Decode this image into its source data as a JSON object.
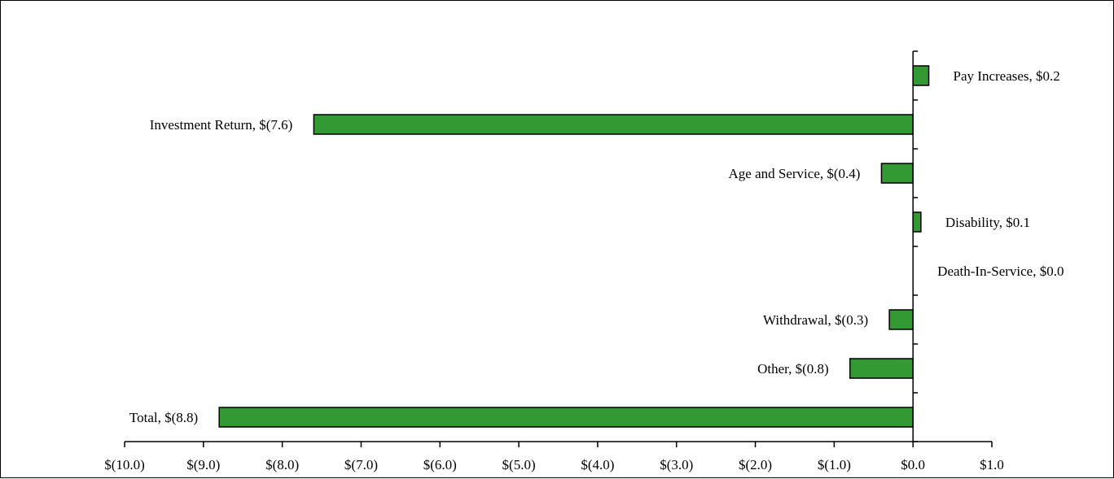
{
  "chart_data": {
    "type": "bar",
    "orientation": "horizontal",
    "categories": [
      "Pay Increases",
      "Investment Return",
      "Age and Service",
      "Disability",
      "Death-In-Service",
      "Withdrawal",
      "Other",
      "Total"
    ],
    "values": [
      0.2,
      -7.6,
      -0.4,
      0.1,
      0.0,
      -0.3,
      -0.8,
      -8.8
    ],
    "data_labels": [
      "Pay Increases, $0.2",
      "Investment Return, $(7.6)",
      "Age and Service, $(0.4)",
      "Disability, $0.1",
      "Death-In-Service, $0.0",
      "Withdrawal, $(0.3)",
      "Other, $(0.8)",
      "Total, $(8.8)"
    ],
    "xlim": [
      -10.0,
      1.0
    ],
    "x_ticks": [
      -10,
      -9,
      -8,
      -7,
      -6,
      -5,
      -4,
      -3,
      -2,
      -1,
      0,
      1
    ],
    "x_tick_labels": [
      "$(10.0)",
      "$(9.0)",
      "$(8.0)",
      "$(7.0)",
      "$(6.0)",
      "$(5.0)",
      "$(4.0)",
      "$(3.0)",
      "$(2.0)",
      "$(1.0)",
      "$0.0",
      "$1.0"
    ],
    "title": "",
    "xlabel": "",
    "ylabel": "",
    "grid": false,
    "legend": "none",
    "bar_color": "#339933",
    "bar_edge_color": "#000000"
  }
}
